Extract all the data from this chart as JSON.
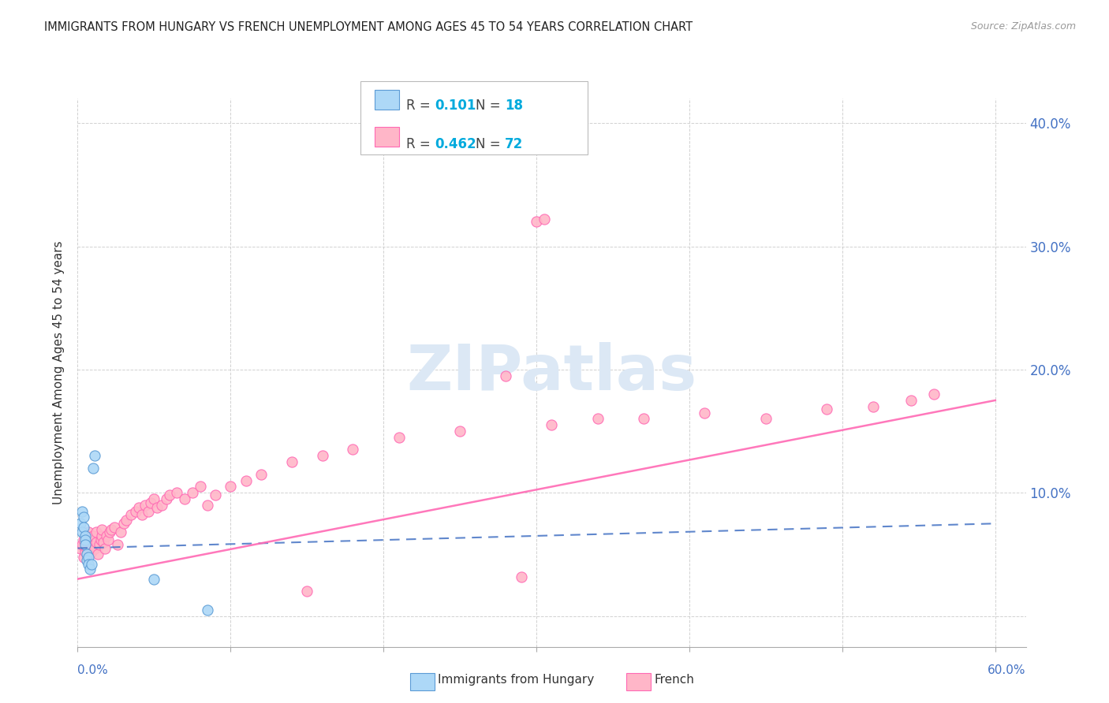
{
  "title": "IMMIGRANTS FROM HUNGARY VS FRENCH UNEMPLOYMENT AMONG AGES 45 TO 54 YEARS CORRELATION CHART",
  "source": "Source: ZipAtlas.com",
  "ylabel": "Unemployment Among Ages 45 to 54 years",
  "xlim": [
    0.0,
    0.62
  ],
  "ylim": [
    -0.025,
    0.42
  ],
  "yticks": [
    0.0,
    0.1,
    0.2,
    0.3,
    0.4
  ],
  "ytick_labels": [
    "",
    "10.0%",
    "20.0%",
    "30.0%",
    "40.0%"
  ],
  "xticks": [
    0.0,
    0.1,
    0.2,
    0.3,
    0.4,
    0.5,
    0.6
  ],
  "color_hungary": "#ADD8F7",
  "color_french": "#FFB6C8",
  "color_hungary_edge": "#5B9BD5",
  "color_french_edge": "#FF69B4",
  "color_blue": "#4472C4",
  "color_pink": "#FF69B4",
  "watermark_color": "#DCE8F5",
  "hungary_x": [
    0.002,
    0.003,
    0.003,
    0.004,
    0.004,
    0.005,
    0.005,
    0.005,
    0.006,
    0.006,
    0.007,
    0.007,
    0.008,
    0.009,
    0.01,
    0.011,
    0.05,
    0.085
  ],
  "hungary_y": [
    0.075,
    0.085,
    0.068,
    0.08,
    0.072,
    0.065,
    0.062,
    0.058,
    0.05,
    0.045,
    0.048,
    0.042,
    0.038,
    0.042,
    0.12,
    0.13,
    0.03,
    0.005
  ],
  "french_x": [
    0.002,
    0.003,
    0.004,
    0.004,
    0.005,
    0.006,
    0.006,
    0.007,
    0.007,
    0.008,
    0.009,
    0.01,
    0.01,
    0.011,
    0.012,
    0.012,
    0.013,
    0.014,
    0.015,
    0.016,
    0.016,
    0.017,
    0.018,
    0.019,
    0.02,
    0.021,
    0.022,
    0.024,
    0.026,
    0.028,
    0.03,
    0.032,
    0.035,
    0.038,
    0.04,
    0.042,
    0.044,
    0.046,
    0.048,
    0.05,
    0.052,
    0.055,
    0.058,
    0.06,
    0.065,
    0.07,
    0.075,
    0.08,
    0.085,
    0.09,
    0.1,
    0.11,
    0.12,
    0.14,
    0.16,
    0.18,
    0.21,
    0.25,
    0.29,
    0.31,
    0.34,
    0.37,
    0.41,
    0.45,
    0.49,
    0.52,
    0.545,
    0.56,
    0.3,
    0.305,
    0.28,
    0.15
  ],
  "french_y": [
    0.055,
    0.058,
    0.048,
    0.062,
    0.052,
    0.055,
    0.065,
    0.05,
    0.068,
    0.06,
    0.052,
    0.058,
    0.065,
    0.055,
    0.06,
    0.068,
    0.05,
    0.058,
    0.062,
    0.065,
    0.07,
    0.06,
    0.055,
    0.065,
    0.062,
    0.068,
    0.07,
    0.072,
    0.058,
    0.068,
    0.075,
    0.078,
    0.082,
    0.085,
    0.088,
    0.082,
    0.09,
    0.085,
    0.092,
    0.095,
    0.088,
    0.09,
    0.095,
    0.098,
    0.1,
    0.095,
    0.1,
    0.105,
    0.09,
    0.098,
    0.105,
    0.11,
    0.115,
    0.125,
    0.13,
    0.135,
    0.145,
    0.15,
    0.032,
    0.155,
    0.16,
    0.16,
    0.165,
    0.16,
    0.168,
    0.17,
    0.175,
    0.18,
    0.32,
    0.322,
    0.195,
    0.02
  ],
  "hu_line_x": [
    0.0,
    0.6
  ],
  "hu_line_y": [
    0.055,
    0.075
  ],
  "fr_line_x": [
    0.0,
    0.6
  ],
  "fr_line_y": [
    0.03,
    0.175
  ]
}
